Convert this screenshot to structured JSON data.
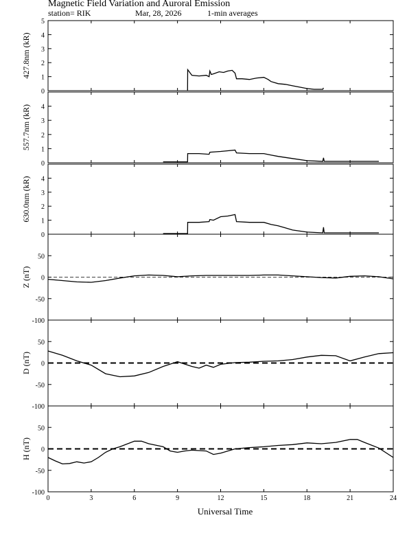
{
  "header": {
    "title": "Magnetic Field Variation and Auroral Emission",
    "station": "station= RIK",
    "date": "Mar, 28, 2026",
    "averaging": "1-min averages"
  },
  "chart_data": [
    {
      "type": "line",
      "id": "p4278",
      "ylabel": "427.8nm (kR)",
      "xlim": [
        0,
        24
      ],
      "ylim": [
        0,
        5
      ],
      "yticks": [
        "0",
        "1",
        "2",
        "3",
        "4",
        "5"
      ],
      "ytick_values": [
        0,
        1,
        2,
        3,
        4,
        5
      ],
      "zero_line": false,
      "series": [
        {
          "name": "427.8nm",
          "x": [
            9.7,
            9.71,
            10.0,
            10.5,
            11.0,
            11.2,
            11.25,
            11.35,
            11.5,
            11.9,
            12.2,
            12.5,
            12.8,
            13.0,
            13.1,
            13.5,
            14.0,
            14.5,
            15.0,
            15.3,
            15.5,
            16.0,
            16.5,
            17.0,
            17.5,
            18.0,
            18.5,
            19.1,
            19.15
          ],
          "y": [
            0,
            1.5,
            1.1,
            1.05,
            1.1,
            1.0,
            1.4,
            1.15,
            1.2,
            1.35,
            1.3,
            1.4,
            1.45,
            1.25,
            0.85,
            0.85,
            0.8,
            0.9,
            0.95,
            0.8,
            0.65,
            0.5,
            0.45,
            0.35,
            0.25,
            0.15,
            0.1,
            0.1,
            0.2
          ]
        }
      ]
    },
    {
      "type": "line",
      "id": "p5577",
      "ylabel": "557.7nm (kR)",
      "xlim": [
        0,
        24
      ],
      "ylim": [
        0,
        5
      ],
      "yticks": [
        "0",
        "1",
        "2",
        "3",
        "4"
      ],
      "ytick_values": [
        0,
        1,
        2,
        3,
        4
      ],
      "zero_line": false,
      "series": [
        {
          "name": "557.7nm",
          "x": [
            8.0,
            9.7,
            9.71,
            10.5,
            11.2,
            11.25,
            12.0,
            12.5,
            13.0,
            13.1,
            14.0,
            15.0,
            15.5,
            16.0,
            17.0,
            18.0,
            19.1,
            19.15,
            19.2,
            23.0
          ],
          "y": [
            0.07,
            0.07,
            0.65,
            0.65,
            0.6,
            0.75,
            0.8,
            0.85,
            0.9,
            0.7,
            0.65,
            0.65,
            0.55,
            0.45,
            0.3,
            0.15,
            0.1,
            0.35,
            0.1,
            0.1
          ]
        }
      ]
    },
    {
      "type": "line",
      "id": "p6300",
      "ylabel": "630.0nm (kR)",
      "xlim": [
        0,
        24
      ],
      "ylim": [
        0,
        5
      ],
      "yticks": [
        "0",
        "1",
        "2",
        "3",
        "4"
      ],
      "ytick_values": [
        0,
        1,
        2,
        3,
        4
      ],
      "zero_line": false,
      "series": [
        {
          "name": "630.0nm",
          "x": [
            8.0,
            9.7,
            9.71,
            10.5,
            11.2,
            11.25,
            11.5,
            12.0,
            12.5,
            13.0,
            13.1,
            14.0,
            15.0,
            15.5,
            16.0,
            16.5,
            17.0,
            18.0,
            19.1,
            19.15,
            19.2,
            23.0
          ],
          "y": [
            0.05,
            0.05,
            0.85,
            0.85,
            0.9,
            1.05,
            1.0,
            1.25,
            1.3,
            1.4,
            0.9,
            0.85,
            0.85,
            0.7,
            0.6,
            0.45,
            0.3,
            0.15,
            0.1,
            0.5,
            0.1,
            0.1
          ]
        }
      ]
    },
    {
      "type": "line",
      "id": "pZ",
      "ylabel": "Z (nT)",
      "xlim": [
        0,
        24
      ],
      "ylim": [
        -100,
        100
      ],
      "yticks": [
        "-100",
        "-50",
        "0",
        "50"
      ],
      "ytick_values": [
        -100,
        -50,
        0,
        50
      ],
      "zero_line": true,
      "zero_style": "thin-dashed",
      "series": [
        {
          "name": "Z",
          "x": [
            0,
            1,
            2,
            3,
            4,
            5,
            6,
            7,
            8,
            9,
            10,
            11,
            12,
            13,
            14,
            15,
            16,
            17,
            18,
            19,
            20,
            21,
            22,
            23,
            24
          ],
          "y": [
            -5,
            -8,
            -11,
            -12,
            -8,
            -2,
            3,
            5,
            4,
            1,
            3,
            4,
            4,
            4,
            4,
            5,
            5,
            3,
            1,
            -1,
            -2,
            2,
            3,
            1,
            -4
          ]
        }
      ]
    },
    {
      "type": "line",
      "id": "pD",
      "ylabel": "D (nT)",
      "xlim": [
        0,
        24
      ],
      "ylim": [
        -100,
        100
      ],
      "yticks": [
        "-100",
        "-50",
        "0",
        "50"
      ],
      "ytick_values": [
        -100,
        -50,
        0,
        50
      ],
      "zero_line": true,
      "zero_style": "thick-dashed",
      "series": [
        {
          "name": "D",
          "x": [
            0,
            1,
            2,
            3,
            4,
            5,
            6,
            7,
            8,
            9,
            10,
            10.5,
            11,
            11.5,
            12,
            13,
            14,
            15,
            16,
            17,
            18,
            19,
            20,
            21,
            22,
            23,
            24
          ],
          "y": [
            28,
            18,
            5,
            -5,
            -25,
            -32,
            -30,
            -22,
            -8,
            3,
            -8,
            -12,
            -5,
            -10,
            -3,
            1,
            2,
            4,
            5,
            8,
            14,
            18,
            17,
            5,
            14,
            22,
            24
          ]
        }
      ]
    },
    {
      "type": "line",
      "id": "pH",
      "ylabel": "H (nT)",
      "xlim": [
        0,
        24
      ],
      "ylim": [
        -100,
        100
      ],
      "yticks": [
        "-100",
        "-50",
        "0",
        "50"
      ],
      "ytick_values": [
        -100,
        -50,
        0,
        50
      ],
      "zero_line": true,
      "zero_style": "thick-dashed",
      "series": [
        {
          "name": "H",
          "x": [
            0,
            0.5,
            1,
            1.5,
            2,
            2.5,
            3,
            3.5,
            4,
            4.5,
            5,
            6,
            6.5,
            7,
            8,
            8.5,
            9,
            9.5,
            10,
            11,
            11.5,
            12,
            13,
            14,
            15,
            16,
            17,
            18,
            19,
            20,
            21,
            21.5,
            22,
            23,
            24
          ],
          "y": [
            -20,
            -28,
            -35,
            -34,
            -30,
            -33,
            -30,
            -20,
            -8,
            0,
            5,
            18,
            18,
            12,
            5,
            -5,
            -8,
            -5,
            -3,
            -5,
            -13,
            -10,
            0,
            3,
            5,
            8,
            10,
            14,
            12,
            15,
            22,
            22,
            15,
            2,
            -20
          ]
        }
      ]
    }
  ],
  "xaxis": {
    "label": "Universal Time",
    "ticks": [
      "0",
      "3",
      "6",
      "9",
      "12",
      "15",
      "18",
      "21",
      "24"
    ],
    "tick_values": [
      0,
      3,
      6,
      9,
      12,
      15,
      18,
      21,
      24
    ]
  }
}
